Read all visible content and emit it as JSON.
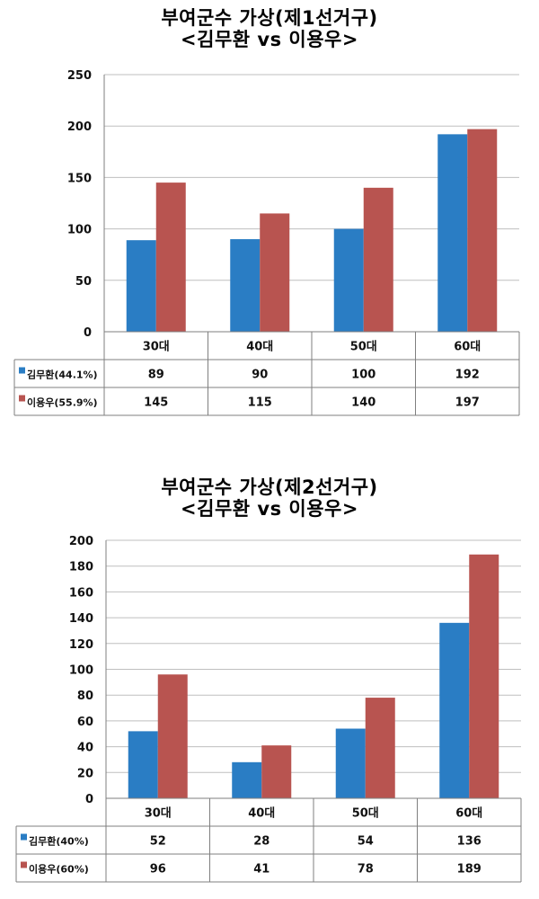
{
  "charts": [
    {
      "title_line1": "부여군수 가상(제1선거구)",
      "title_line2": "<김무환 vs 이용우>"
    },
    {
      "title_line1": "부여군수 가상(제2선거구)",
      "title_line2": "<김무환 vs 이용우>"
    }
  ],
  "colors": {
    "series1": "#2A7DC4",
    "series2": "#B85450",
    "grid": "#bfbfbf",
    "axis": "#7f7f7f"
  },
  "chart_data": [
    {
      "type": "bar",
      "categories": [
        "30대",
        "40대",
        "50대",
        "60대"
      ],
      "series": [
        {
          "name": "김무환(44.1%)",
          "values": [
            89,
            90,
            100,
            192
          ]
        },
        {
          "name": "이용우(55.9%)",
          "values": [
            145,
            115,
            140,
            197
          ]
        }
      ],
      "ylim": [
        0,
        250
      ],
      "yticks": [
        0,
        50,
        100,
        150,
        200,
        250
      ],
      "grid": true,
      "legend": "data-table"
    },
    {
      "type": "bar",
      "categories": [
        "30대",
        "40대",
        "50대",
        "60대"
      ],
      "series": [
        {
          "name": "김무환(40%)",
          "values": [
            52,
            28,
            54,
            136
          ]
        },
        {
          "name": "이용우(60%)",
          "values": [
            96,
            41,
            78,
            189
          ]
        }
      ],
      "ylim": [
        0,
        200
      ],
      "yticks": [
        0,
        20,
        40,
        60,
        80,
        100,
        120,
        140,
        160,
        180,
        200
      ],
      "grid": true,
      "legend": "data-table"
    }
  ]
}
